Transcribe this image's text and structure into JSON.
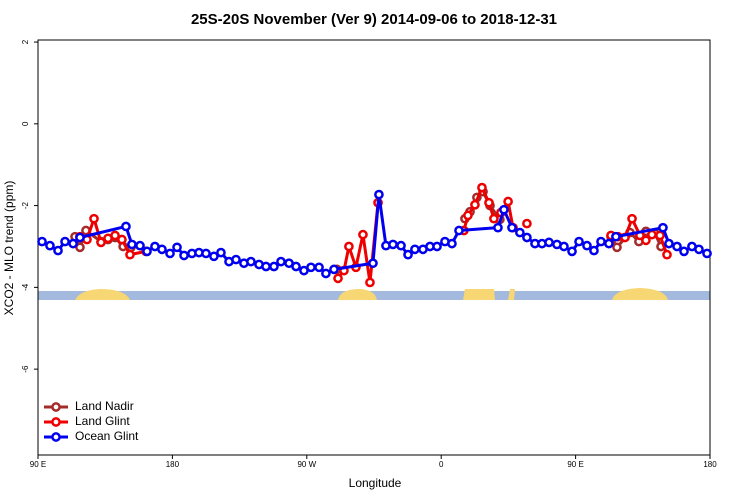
{
  "chart_data": {
    "type": "line",
    "title": "25S-20S November (Ver 9)   2014-09-06 to 2018-12-31",
    "x_label": "Longitude",
    "y_label": "XCO2 - MLO trend (ppm)",
    "xlim": [
      90,
      540
    ],
    "ylim": [
      -8.1,
      2.05
    ],
    "xticks": [
      {
        "value": 90,
        "label": "90 E"
      },
      180,
      {
        "value": 270,
        "label": "90 W"
      },
      {
        "value": 360,
        "label": "0"
      },
      {
        "value": 450,
        "label": "90 E"
      },
      {
        "value": 540,
        "label": "180"
      }
    ],
    "yticks": [
      2,
      0,
      -2,
      -4,
      -6
    ],
    "legend": "bottom-left",
    "series": [
      {
        "name": "Land Nadir",
        "color": "#a52a2a",
        "x": [
          114.8,
          118.1,
          122.1,
          132.2,
          136.9,
          141.6,
          147.0,
          152.3,
          null,
          290.2,
          null,
          375.9,
          379.3,
          383.9,
          388.0,
          392.7,
          399.3,
          null,
          473.7,
          477.7,
          486.4,
          492.4,
          497.1,
          503.1,
          507.2
        ],
        "values": [
          -2.76,
          -3.02,
          -2.61,
          -2.88,
          -2.83,
          -2.78,
          -3.0,
          -3.02,
          null,
          -3.56,
          null,
          -2.32,
          -2.15,
          -1.8,
          -1.66,
          -2.0,
          -2.34,
          null,
          -2.76,
          -3.02,
          -2.66,
          -2.88,
          -2.63,
          -2.68,
          -3.0
        ]
      },
      {
        "name": "Land Glint",
        "color": "#ee0000",
        "x": [
          118.1,
          122.8,
          127.5,
          132.2,
          136.9,
          141.6,
          146.2,
          151.6,
          162.3,
          null,
          290.9,
          294.9,
          298.2,
          302.9,
          307.6,
          312.3,
          317.7,
          null,
          375.2,
          377.9,
          382.6,
          387.3,
          392.0,
          395.3,
          400.0,
          404.8,
          408.1,
          null,
          417.4,
          null,
          473.7,
          478.4,
          483.1,
          487.8,
          493.1,
          497.1,
          501.1,
          506.5,
          511.2
        ],
        "values": [
          -2.76,
          -2.83,
          -2.32,
          -2.9,
          -2.8,
          -2.73,
          -2.83,
          -3.2,
          -3.12,
          null,
          -3.78,
          -3.59,
          -3.0,
          -3.51,
          -2.71,
          -3.88,
          -1.93,
          null,
          -2.61,
          -2.24,
          -1.98,
          -1.56,
          -1.93,
          -2.32,
          -2.17,
          -1.9,
          -2.54,
          null,
          -2.44,
          null,
          -2.73,
          -2.76,
          -2.78,
          -2.32,
          -2.73,
          -2.85,
          -2.71,
          -2.73,
          -3.2
        ]
      },
      {
        "name": "Ocean Glint",
        "color": "#0000ee",
        "x": [
          92.7,
          98.0,
          103.4,
          108.1,
          113.5,
          118.1,
          148.9,
          152.9,
          158.3,
          163.0,
          168.3,
          173.0,
          178.4,
          183.1,
          187.8,
          193.1,
          197.8,
          202.5,
          207.8,
          212.5,
          217.9,
          222.6,
          227.9,
          232.6,
          238.0,
          242.7,
          248.0,
          252.7,
          258.1,
          262.8,
          268.1,
          272.8,
          278.2,
          282.8,
          288.2,
          314.3,
          318.3,
          323.0,
          327.7,
          333.1,
          337.8,
          342.4,
          347.8,
          352.5,
          357.2,
          362.5,
          367.2,
          371.9,
          398.0,
          402.0,
          407.4,
          412.7,
          417.4,
          422.8,
          427.5,
          432.2,
          437.5,
          442.2,
          447.6,
          452.3,
          457.6,
          462.3,
          467.0,
          472.3,
          477.0,
          508.5,
          512.5,
          517.9,
          522.6,
          527.9,
          532.6,
          538.0
        ],
        "values": [
          -2.88,
          -2.98,
          -3.1,
          -2.88,
          -2.93,
          -2.78,
          -2.51,
          -2.95,
          -2.98,
          -3.12,
          -3.0,
          -3.07,
          -3.17,
          -3.02,
          -3.22,
          -3.17,
          -3.15,
          -3.17,
          -3.24,
          -3.15,
          -3.37,
          -3.32,
          -3.41,
          -3.37,
          -3.44,
          -3.49,
          -3.49,
          -3.37,
          -3.41,
          -3.49,
          -3.59,
          -3.51,
          -3.51,
          -3.66,
          -3.56,
          -3.41,
          -1.73,
          -2.98,
          -2.95,
          -2.98,
          -3.2,
          -3.07,
          -3.07,
          -3.0,
          -3.0,
          -2.88,
          -2.93,
          -2.61,
          -2.54,
          -2.1,
          -2.54,
          -2.66,
          -2.78,
          -2.93,
          -2.93,
          -2.9,
          -2.95,
          -3.0,
          -3.12,
          -2.88,
          -2.98,
          -3.1,
          -2.88,
          -2.93,
          -2.76,
          -2.54,
          -2.93,
          -3.0,
          -3.12,
          -3.0,
          -3.07,
          -3.17
        ]
      }
    ]
  }
}
